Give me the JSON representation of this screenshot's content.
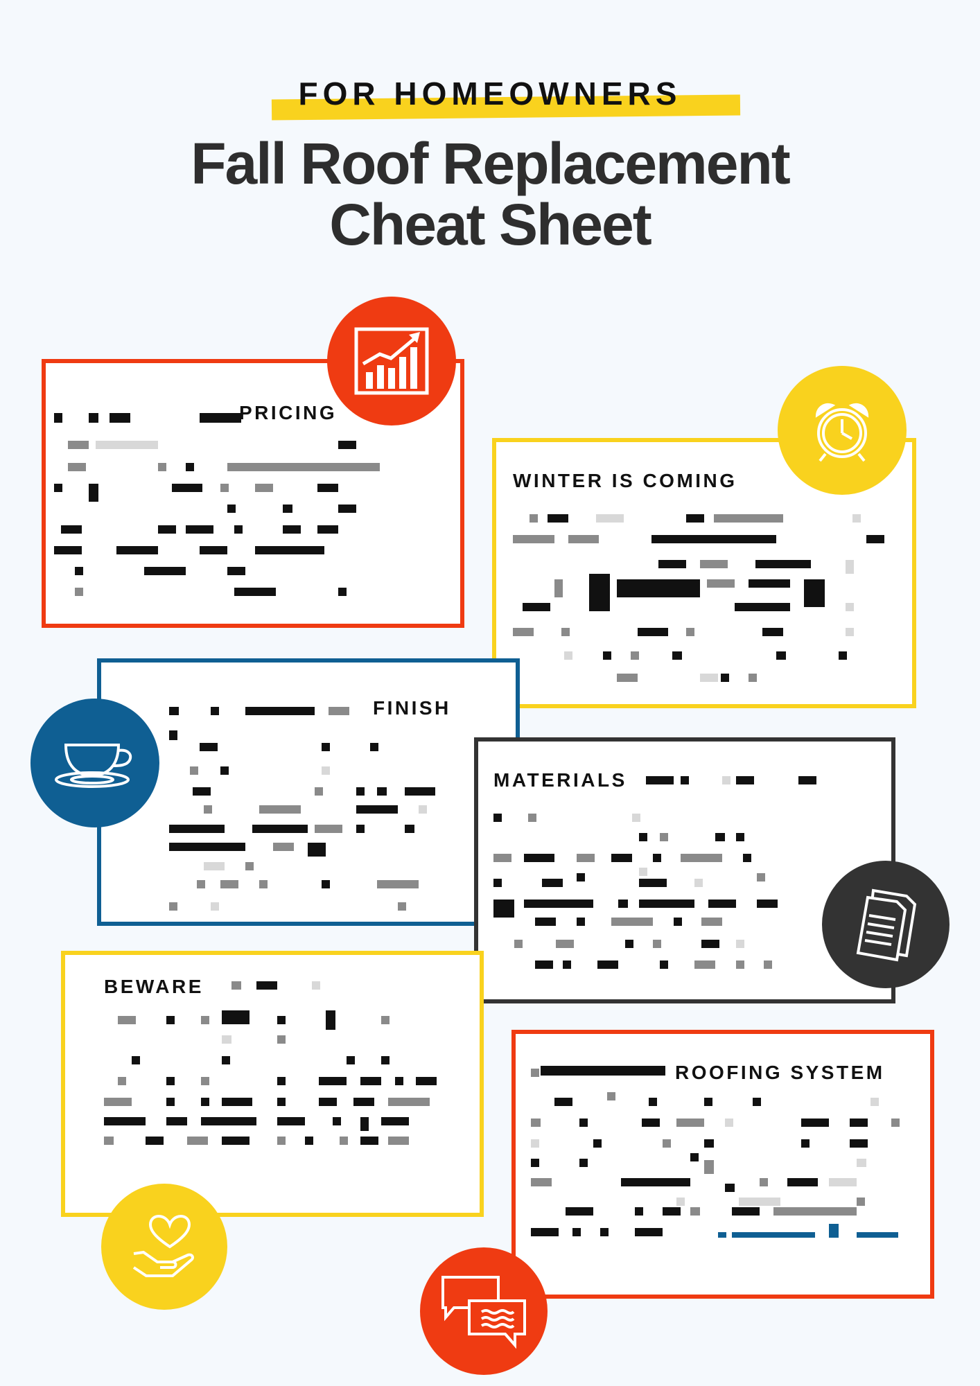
{
  "header": {
    "eyebrow": "FOR HOMEOWNERS",
    "title_line1": "Fall Roof Replacement",
    "title_line2": "Cheat Sheet"
  },
  "colors": {
    "background": "#f5f9fd",
    "orange": "#ef3b12",
    "yellow": "#f9d21e",
    "blue": "#0f5f93",
    "dark": "#333333",
    "card_bg": "#ffffff"
  },
  "sections": [
    {
      "id": "pricing",
      "heading": "PRICING",
      "icon": "growth-chart-icon",
      "color": "orange"
    },
    {
      "id": "winter",
      "heading": "WINTER IS COMING",
      "icon": "alarm-clock-icon",
      "color": "yellow"
    },
    {
      "id": "finish",
      "heading": "FINISH",
      "icon": "teacup-icon",
      "color": "blue"
    },
    {
      "id": "materials",
      "heading": "MATERIALS",
      "icon": "documents-icon",
      "color": "dark"
    },
    {
      "id": "beware",
      "heading": "BEWARE",
      "icon": "heart-in-hand-icon",
      "color": "yellow"
    },
    {
      "id": "roofing",
      "heading": "ROOFING SYSTEM",
      "icon": "speech-bubbles-icon",
      "color": "orange"
    }
  ]
}
